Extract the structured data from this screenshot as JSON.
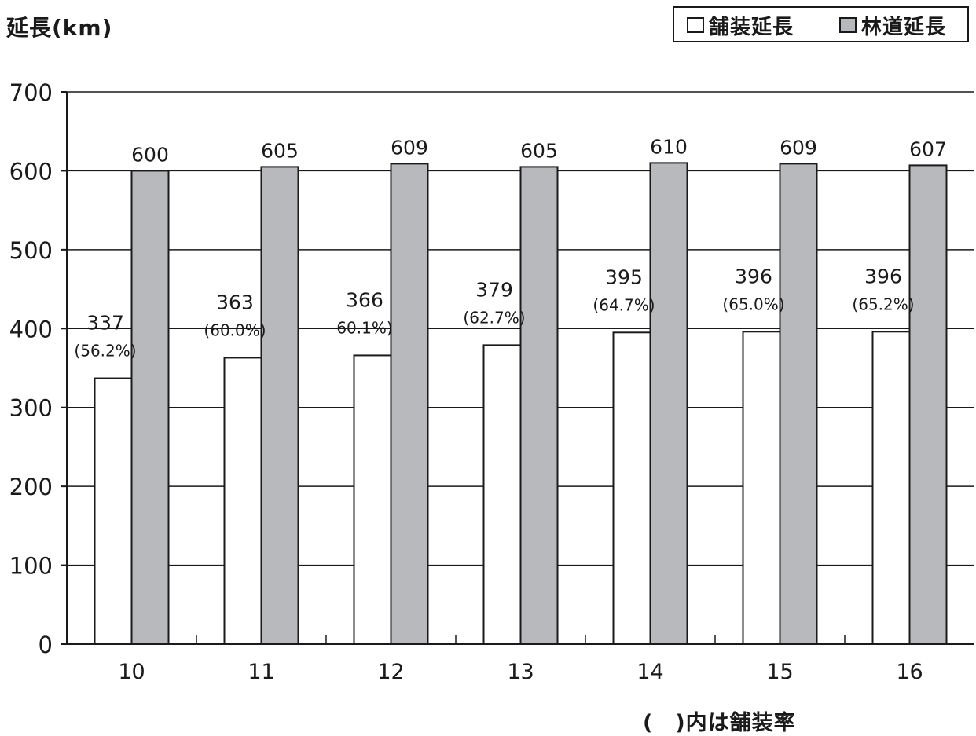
{
  "yunit_label": "延長(km)",
  "note": "(　)内は舗装率",
  "legend": {
    "paved": "舗装延長",
    "forest": "林道延長"
  },
  "colors": {
    "paved": "#ffffff",
    "forest": "#b8b9bd",
    "stroke": "#1a1a1a"
  },
  "chart_data": {
    "type": "bar",
    "categories": [
      "10",
      "11",
      "12",
      "13",
      "14",
      "15",
      "16"
    ],
    "series": [
      {
        "name": "舗装延長",
        "values": [
          337,
          363,
          366,
          379,
          395,
          396,
          396
        ]
      },
      {
        "name": "林道延長",
        "values": [
          600,
          605,
          609,
          605,
          610,
          609,
          607
        ]
      }
    ],
    "paved_rate_labels": [
      "(56.2%)",
      "(60.0%)",
      "60.1%)",
      "(62.7%)",
      "(64.7%)",
      "(65.0%)",
      "(65.2%)"
    ],
    "ylim": [
      0,
      700
    ],
    "yticks": [
      0,
      100,
      200,
      300,
      400,
      500,
      600,
      700
    ],
    "ylabel": "延長(km)",
    "xlabel": "",
    "grid": true,
    "legend_position": "top-right"
  }
}
